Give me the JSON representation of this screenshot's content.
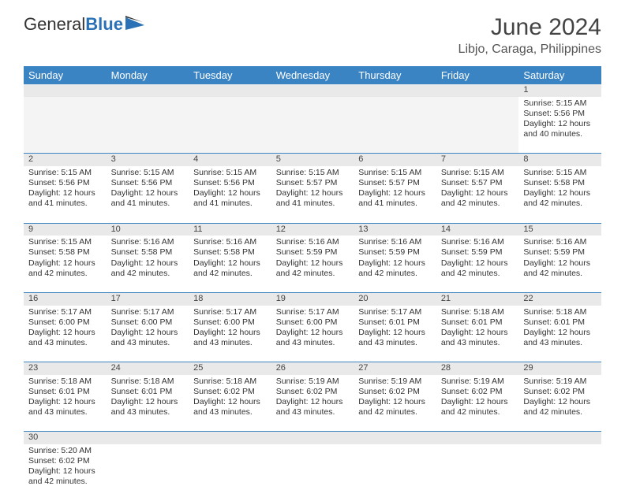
{
  "brand": {
    "part1": "General",
    "part2": "Blue"
  },
  "title": "June 2024",
  "location": "Libjo, Caraga, Philippines",
  "style": {
    "header_bg": "#3b84c4",
    "header_text": "#ffffff",
    "daynum_bg": "#e9e9e9",
    "row_border": "#3b84c4",
    "body_text": "#333333",
    "title_color": "#444444",
    "brand_blue": "#2a72b5"
  },
  "day_headers": [
    "Sunday",
    "Monday",
    "Tuesday",
    "Wednesday",
    "Thursday",
    "Friday",
    "Saturday"
  ],
  "weeks": [
    [
      null,
      null,
      null,
      null,
      null,
      null,
      {
        "n": "1",
        "sr": "Sunrise: 5:15 AM",
        "ss": "Sunset: 5:56 PM",
        "d1": "Daylight: 12 hours",
        "d2": "and 40 minutes."
      }
    ],
    [
      {
        "n": "2",
        "sr": "Sunrise: 5:15 AM",
        "ss": "Sunset: 5:56 PM",
        "d1": "Daylight: 12 hours",
        "d2": "and 41 minutes."
      },
      {
        "n": "3",
        "sr": "Sunrise: 5:15 AM",
        "ss": "Sunset: 5:56 PM",
        "d1": "Daylight: 12 hours",
        "d2": "and 41 minutes."
      },
      {
        "n": "4",
        "sr": "Sunrise: 5:15 AM",
        "ss": "Sunset: 5:56 PM",
        "d1": "Daylight: 12 hours",
        "d2": "and 41 minutes."
      },
      {
        "n": "5",
        "sr": "Sunrise: 5:15 AM",
        "ss": "Sunset: 5:57 PM",
        "d1": "Daylight: 12 hours",
        "d2": "and 41 minutes."
      },
      {
        "n": "6",
        "sr": "Sunrise: 5:15 AM",
        "ss": "Sunset: 5:57 PM",
        "d1": "Daylight: 12 hours",
        "d2": "and 41 minutes."
      },
      {
        "n": "7",
        "sr": "Sunrise: 5:15 AM",
        "ss": "Sunset: 5:57 PM",
        "d1": "Daylight: 12 hours",
        "d2": "and 42 minutes."
      },
      {
        "n": "8",
        "sr": "Sunrise: 5:15 AM",
        "ss": "Sunset: 5:58 PM",
        "d1": "Daylight: 12 hours",
        "d2": "and 42 minutes."
      }
    ],
    [
      {
        "n": "9",
        "sr": "Sunrise: 5:15 AM",
        "ss": "Sunset: 5:58 PM",
        "d1": "Daylight: 12 hours",
        "d2": "and 42 minutes."
      },
      {
        "n": "10",
        "sr": "Sunrise: 5:16 AM",
        "ss": "Sunset: 5:58 PM",
        "d1": "Daylight: 12 hours",
        "d2": "and 42 minutes."
      },
      {
        "n": "11",
        "sr": "Sunrise: 5:16 AM",
        "ss": "Sunset: 5:58 PM",
        "d1": "Daylight: 12 hours",
        "d2": "and 42 minutes."
      },
      {
        "n": "12",
        "sr": "Sunrise: 5:16 AM",
        "ss": "Sunset: 5:59 PM",
        "d1": "Daylight: 12 hours",
        "d2": "and 42 minutes."
      },
      {
        "n": "13",
        "sr": "Sunrise: 5:16 AM",
        "ss": "Sunset: 5:59 PM",
        "d1": "Daylight: 12 hours",
        "d2": "and 42 minutes."
      },
      {
        "n": "14",
        "sr": "Sunrise: 5:16 AM",
        "ss": "Sunset: 5:59 PM",
        "d1": "Daylight: 12 hours",
        "d2": "and 42 minutes."
      },
      {
        "n": "15",
        "sr": "Sunrise: 5:16 AM",
        "ss": "Sunset: 5:59 PM",
        "d1": "Daylight: 12 hours",
        "d2": "and 42 minutes."
      }
    ],
    [
      {
        "n": "16",
        "sr": "Sunrise: 5:17 AM",
        "ss": "Sunset: 6:00 PM",
        "d1": "Daylight: 12 hours",
        "d2": "and 43 minutes."
      },
      {
        "n": "17",
        "sr": "Sunrise: 5:17 AM",
        "ss": "Sunset: 6:00 PM",
        "d1": "Daylight: 12 hours",
        "d2": "and 43 minutes."
      },
      {
        "n": "18",
        "sr": "Sunrise: 5:17 AM",
        "ss": "Sunset: 6:00 PM",
        "d1": "Daylight: 12 hours",
        "d2": "and 43 minutes."
      },
      {
        "n": "19",
        "sr": "Sunrise: 5:17 AM",
        "ss": "Sunset: 6:00 PM",
        "d1": "Daylight: 12 hours",
        "d2": "and 43 minutes."
      },
      {
        "n": "20",
        "sr": "Sunrise: 5:17 AM",
        "ss": "Sunset: 6:01 PM",
        "d1": "Daylight: 12 hours",
        "d2": "and 43 minutes."
      },
      {
        "n": "21",
        "sr": "Sunrise: 5:18 AM",
        "ss": "Sunset: 6:01 PM",
        "d1": "Daylight: 12 hours",
        "d2": "and 43 minutes."
      },
      {
        "n": "22",
        "sr": "Sunrise: 5:18 AM",
        "ss": "Sunset: 6:01 PM",
        "d1": "Daylight: 12 hours",
        "d2": "and 43 minutes."
      }
    ],
    [
      {
        "n": "23",
        "sr": "Sunrise: 5:18 AM",
        "ss": "Sunset: 6:01 PM",
        "d1": "Daylight: 12 hours",
        "d2": "and 43 minutes."
      },
      {
        "n": "24",
        "sr": "Sunrise: 5:18 AM",
        "ss": "Sunset: 6:01 PM",
        "d1": "Daylight: 12 hours",
        "d2": "and 43 minutes."
      },
      {
        "n": "25",
        "sr": "Sunrise: 5:18 AM",
        "ss": "Sunset: 6:02 PM",
        "d1": "Daylight: 12 hours",
        "d2": "and 43 minutes."
      },
      {
        "n": "26",
        "sr": "Sunrise: 5:19 AM",
        "ss": "Sunset: 6:02 PM",
        "d1": "Daylight: 12 hours",
        "d2": "and 43 minutes."
      },
      {
        "n": "27",
        "sr": "Sunrise: 5:19 AM",
        "ss": "Sunset: 6:02 PM",
        "d1": "Daylight: 12 hours",
        "d2": "and 42 minutes."
      },
      {
        "n": "28",
        "sr": "Sunrise: 5:19 AM",
        "ss": "Sunset: 6:02 PM",
        "d1": "Daylight: 12 hours",
        "d2": "and 42 minutes."
      },
      {
        "n": "29",
        "sr": "Sunrise: 5:19 AM",
        "ss": "Sunset: 6:02 PM",
        "d1": "Daylight: 12 hours",
        "d2": "and 42 minutes."
      }
    ],
    [
      {
        "n": "30",
        "sr": "Sunrise: 5:20 AM",
        "ss": "Sunset: 6:02 PM",
        "d1": "Daylight: 12 hours",
        "d2": "and 42 minutes."
      },
      null,
      null,
      null,
      null,
      null,
      null
    ]
  ]
}
